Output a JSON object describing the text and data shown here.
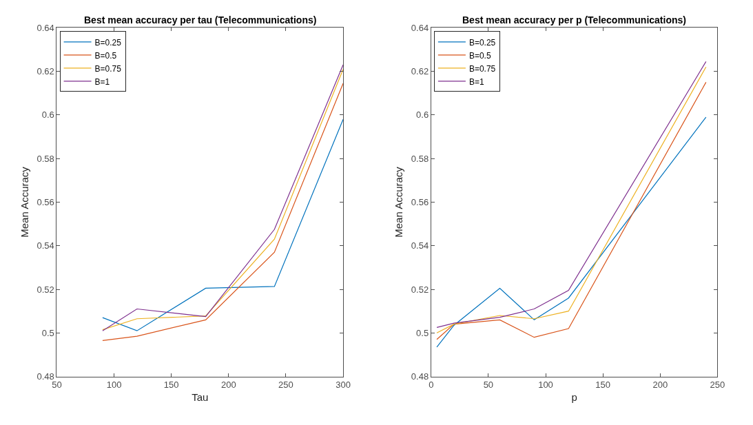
{
  "chart_data": [
    {
      "type": "line",
      "title": "Best mean accuracy per tau (Telecommunications)",
      "xlabel": "Tau",
      "ylabel": "Mean Accuracy",
      "x": [
        90,
        120,
        180,
        240,
        300
      ],
      "xlim": [
        50,
        300
      ],
      "xticks": [
        50,
        100,
        150,
        200,
        250,
        300
      ],
      "ylim": [
        0.48,
        0.64
      ],
      "yticks": [
        0.48,
        0.5,
        0.52,
        0.54,
        0.56,
        0.58,
        0.6,
        0.62,
        0.64
      ],
      "legend": "top left",
      "marker": "none",
      "line_style": "solid",
      "series": [
        {
          "name": "B=0.25",
          "color": "#0072bd",
          "values": [
            0.507,
            0.501,
            0.5205,
            0.5213,
            0.598
          ]
        },
        {
          "name": "B=0.5",
          "color": "#d95319",
          "values": [
            0.4965,
            0.4985,
            0.506,
            0.537,
            0.6145
          ]
        },
        {
          "name": "B=0.75",
          "color": "#edb120",
          "values": [
            0.5015,
            0.5065,
            0.5078,
            0.543,
            0.621
          ]
        },
        {
          "name": "B=1",
          "color": "#7e2f8e",
          "values": [
            0.501,
            0.511,
            0.5075,
            0.5475,
            0.623
          ]
        }
      ]
    },
    {
      "type": "line",
      "title": "Best mean accuracy per p (Telecommunications)",
      "xlabel": "p",
      "ylabel": "Mean Accuracy",
      "x": [
        5,
        20,
        60,
        90,
        120,
        240
      ],
      "xlim": [
        0,
        250
      ],
      "xticks": [
        0,
        50,
        100,
        150,
        200,
        250
      ],
      "ylim": [
        0.48,
        0.64
      ],
      "yticks": [
        0.48,
        0.5,
        0.52,
        0.54,
        0.56,
        0.58,
        0.6,
        0.62,
        0.64
      ],
      "legend": "top left",
      "marker": "none",
      "line_style": "solid",
      "series": [
        {
          "name": "B=0.25",
          "color": "#0072bd",
          "values": [
            0.4935,
            0.5035,
            0.5205,
            0.506,
            0.516,
            0.599
          ]
        },
        {
          "name": "B=0.5",
          "color": "#d95319",
          "values": [
            0.497,
            0.504,
            0.506,
            0.498,
            0.502,
            0.615
          ]
        },
        {
          "name": "B=0.75",
          "color": "#edb120",
          "values": [
            0.5,
            0.504,
            0.508,
            0.5065,
            0.51,
            0.622
          ]
        },
        {
          "name": "B=1",
          "color": "#7e2f8e",
          "values": [
            0.5025,
            0.5045,
            0.5072,
            0.511,
            0.5195,
            0.6245
          ]
        }
      ]
    }
  ]
}
